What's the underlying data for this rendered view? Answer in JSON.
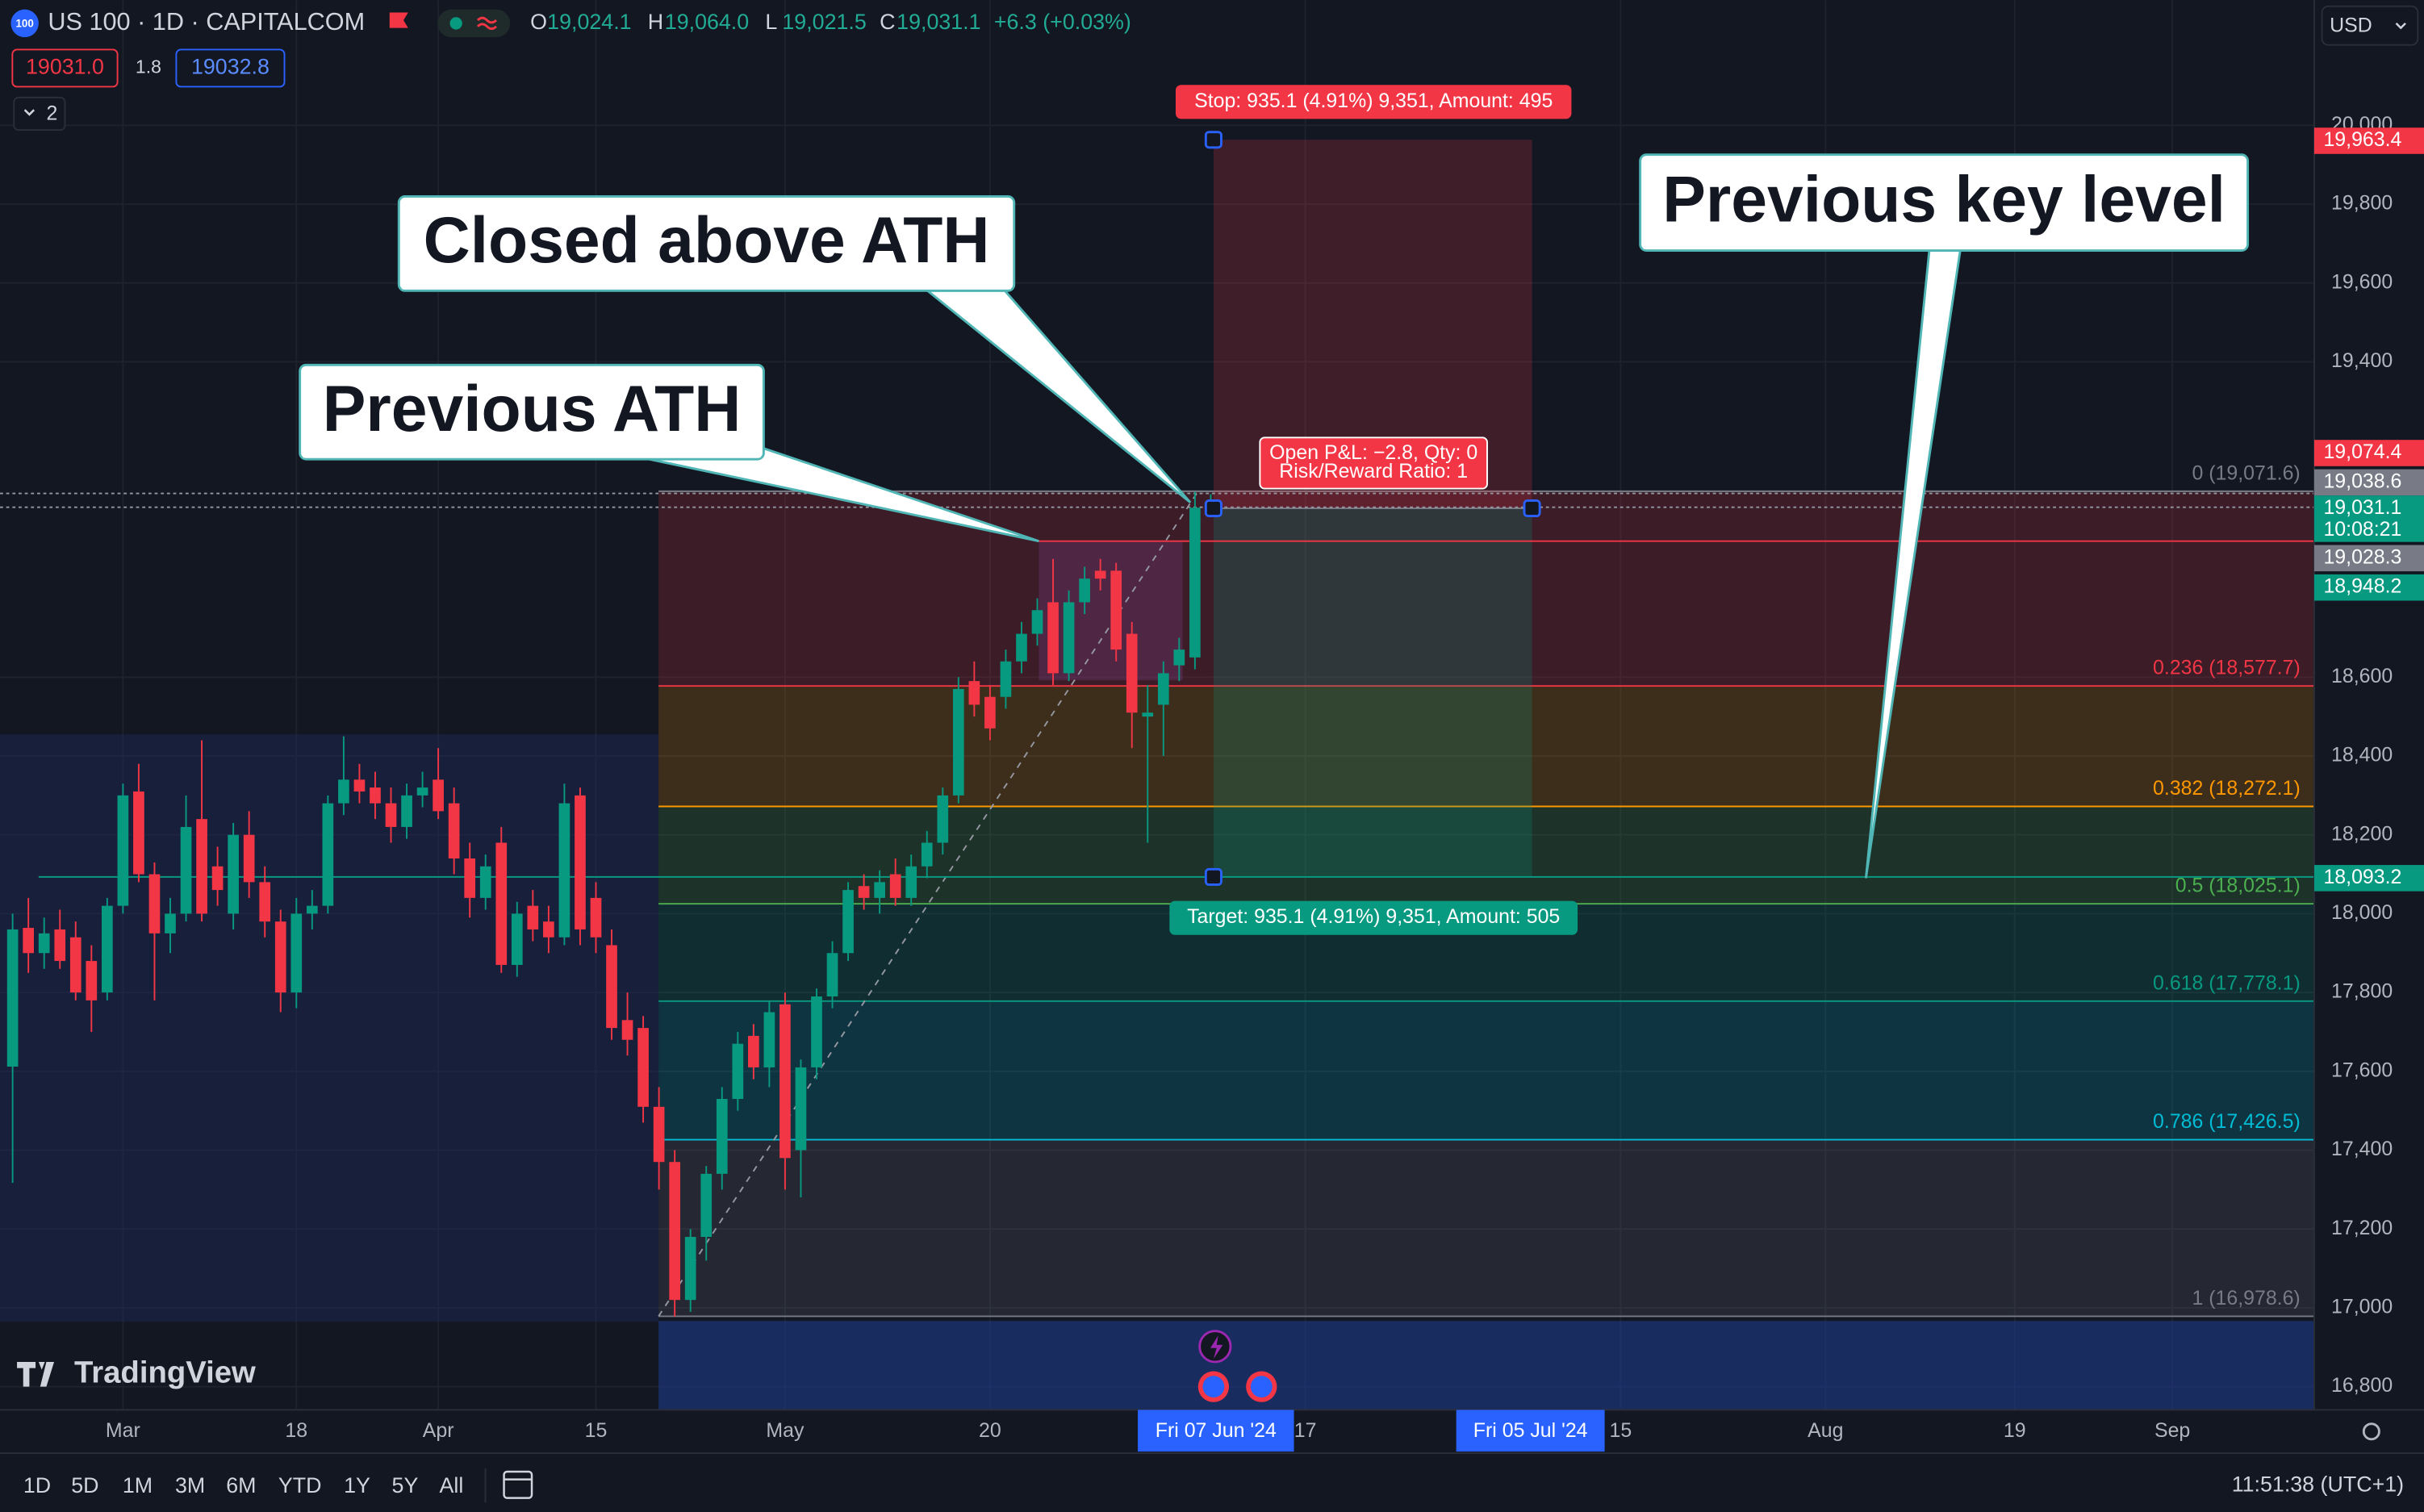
{
  "header": {
    "symbol_icon": "100",
    "title": "US 100 · 1D · CAPITALCOM",
    "ohlc": [
      {
        "key": "O",
        "value": "19,024.1"
      },
      {
        "key": "H",
        "value": "19,064.0"
      },
      {
        "key": "L",
        "value": "19,021.5"
      },
      {
        "key": "C",
        "value": "19,031.1"
      }
    ],
    "change": "+6.3 (+0.03%)",
    "sell": "19031.0",
    "spread": "1.8",
    "buy": "19032.8",
    "indicators": "2",
    "currency": "USD"
  },
  "chart_data": {
    "type": "candlestick",
    "up_color": "#089981",
    "down_color": "#f23645",
    "grid": true,
    "x": [
      0,
      1,
      2,
      3,
      4,
      5,
      6,
      7,
      8,
      9,
      10,
      11,
      12,
      13,
      14,
      15,
      16,
      17,
      18,
      19,
      20,
      21,
      22,
      23,
      24,
      25,
      26,
      27,
      28,
      29,
      30,
      31,
      32,
      33,
      34,
      35,
      36,
      37,
      38,
      39,
      40,
      41,
      42,
      43,
      44,
      45,
      46,
      47,
      48,
      49,
      50,
      51,
      52,
      53,
      54,
      55,
      56,
      57,
      58,
      59,
      60,
      61,
      62,
      63,
      64,
      65,
      66,
      67,
      68,
      69,
      70,
      71,
      72,
      73,
      74,
      75,
      76
    ],
    "ohlc": [
      [
        17612,
        18000,
        17317,
        17960
      ],
      [
        17964,
        18040,
        17850,
        17900
      ],
      [
        17900,
        17990,
        17860,
        17950
      ],
      [
        17960,
        18010,
        17860,
        17880
      ],
      [
        17940,
        17980,
        17780,
        17800
      ],
      [
        17880,
        17920,
        17700,
        17780
      ],
      [
        17800,
        18040,
        17780,
        18020
      ],
      [
        18020,
        18330,
        18000,
        18300
      ],
      [
        18310,
        18380,
        18080,
        18100
      ],
      [
        18100,
        18130,
        17780,
        17950
      ],
      [
        17950,
        18040,
        17900,
        18000
      ],
      [
        18000,
        18300,
        17980,
        18220
      ],
      [
        18240,
        18440,
        17980,
        18000
      ],
      [
        18120,
        18170,
        18020,
        18060
      ],
      [
        18000,
        18230,
        17960,
        18200
      ],
      [
        18200,
        18260,
        18040,
        18080
      ],
      [
        18080,
        18120,
        17940,
        17980
      ],
      [
        17980,
        18010,
        17750,
        17800
      ],
      [
        17800,
        18040,
        17760,
        18000
      ],
      [
        18000,
        18060,
        17960,
        18020
      ],
      [
        18020,
        18300,
        18000,
        18280
      ],
      [
        18280,
        18450,
        18250,
        18340
      ],
      [
        18340,
        18380,
        18280,
        18310
      ],
      [
        18320,
        18360,
        18240,
        18280
      ],
      [
        18280,
        18320,
        18180,
        18220
      ],
      [
        18220,
        18330,
        18190,
        18300
      ],
      [
        18300,
        18360,
        18270,
        18320
      ],
      [
        18340,
        18420,
        18240,
        18260
      ],
      [
        18280,
        18320,
        18100,
        18140
      ],
      [
        18140,
        18180,
        17990,
        18040
      ],
      [
        18040,
        18150,
        18010,
        18120
      ],
      [
        18180,
        18220,
        17850,
        17870
      ],
      [
        17870,
        18030,
        17840,
        18000
      ],
      [
        18020,
        18060,
        17930,
        17960
      ],
      [
        17980,
        18020,
        17900,
        17940
      ],
      [
        17940,
        18330,
        17920,
        18280
      ],
      [
        18300,
        18320,
        17920,
        17960
      ],
      [
        18040,
        18080,
        17900,
        17940
      ],
      [
        17920,
        17960,
        17680,
        17710
      ],
      [
        17730,
        17800,
        17640,
        17680
      ],
      [
        17710,
        17740,
        17470,
        17510
      ],
      [
        17510,
        17560,
        17300,
        17370
      ],
      [
        17370,
        17400,
        16978,
        17020
      ],
      [
        17020,
        17200,
        16990,
        17180
      ],
      [
        17180,
        17360,
        17120,
        17340
      ],
      [
        17340,
        17560,
        17300,
        17530
      ],
      [
        17530,
        17700,
        17500,
        17670
      ],
      [
        17690,
        17720,
        17580,
        17610
      ],
      [
        17610,
        17780,
        17560,
        17750
      ],
      [
        17770,
        17800,
        17300,
        17380
      ],
      [
        17400,
        17630,
        17280,
        17610
      ],
      [
        17610,
        17810,
        17580,
        17790
      ],
      [
        17790,
        17930,
        17760,
        17900
      ],
      [
        17900,
        18080,
        17880,
        18060
      ],
      [
        18070,
        18100,
        18010,
        18040
      ],
      [
        18040,
        18110,
        18000,
        18080
      ],
      [
        18100,
        18140,
        18020,
        18040
      ],
      [
        18040,
        18150,
        18020,
        18120
      ],
      [
        18120,
        18210,
        18090,
        18180
      ],
      [
        18180,
        18320,
        18150,
        18300
      ],
      [
        18300,
        18600,
        18280,
        18570
      ],
      [
        18590,
        18640,
        18500,
        18530
      ],
      [
        18550,
        18580,
        18440,
        18470
      ],
      [
        18550,
        18670,
        18520,
        18640
      ],
      [
        18640,
        18740,
        18610,
        18710
      ],
      [
        18710,
        18800,
        18680,
        18770
      ],
      [
        18790,
        18900,
        18580,
        18610
      ],
      [
        18610,
        18820,
        18590,
        18790
      ],
      [
        18790,
        18880,
        18760,
        18850
      ],
      [
        18870,
        18900,
        18820,
        18850
      ],
      [
        18870,
        18890,
        18640,
        18670
      ],
      [
        18710,
        18740,
        18420,
        18510
      ],
      [
        18500,
        18580,
        18180,
        18510
      ],
      [
        18530,
        18640,
        18400,
        18610
      ],
      [
        18630,
        18700,
        18590,
        18670
      ],
      [
        18650,
        19070,
        18620,
        19030
      ],
      [
        19024.1,
        19064.0,
        19021.5,
        19031.1
      ]
    ],
    "xlim": [
      -0.8,
      146
    ],
    "xticks": [
      {
        "value": 7,
        "label": "Mar"
      },
      18,
      {
        "value": 27,
        "label": "Apr"
      },
      {
        "value": 37,
        "label": "15"
      },
      {
        "value": 49,
        "label": "May"
      },
      {
        "value": 62,
        "label": "20"
      },
      {
        "value": 82,
        "label": "17"
      },
      {
        "value": 102,
        "label": "15"
      },
      {
        "value": 115,
        "label": "Aug"
      },
      {
        "value": 127,
        "label": "19"
      },
      {
        "value": 137,
        "label": "Sep"
      }
    ],
    "ylim": [
      16741.2,
      20317.6
    ],
    "yticks": [
      {
        "value": 16800,
        "label": "16,800"
      },
      {
        "value": 17000,
        "label": "17,000"
      },
      {
        "value": 17200,
        "label": "17,200"
      },
      {
        "value": 17400,
        "label": "17,400"
      },
      {
        "value": 17600,
        "label": "17,600"
      },
      {
        "value": 17800,
        "label": "17,800"
      },
      {
        "value": 18000,
        "label": "18,000"
      },
      {
        "value": 18200,
        "label": "18,200"
      },
      {
        "value": 18400,
        "label": "18,400"
      },
      {
        "value": 18600,
        "label": "18,600"
      },
      {
        "value": 19400,
        "label": "19,400"
      },
      {
        "value": 19600,
        "label": "19,600"
      },
      {
        "value": 19800,
        "label": "19,800"
      },
      {
        "value": 20000,
        "label": "20,000"
      }
    ],
    "fib": {
      "levels": [
        {
          "value": 19071.6,
          "label": "0 (19,071.6)",
          "color": "#787b86"
        },
        {
          "value": 18577.7,
          "label": "0.236 (18,577.7)",
          "color": "#f23645"
        },
        {
          "value": 18272.1,
          "label": "0.382 (18,272.1)",
          "color": "#ff9800"
        },
        {
          "value": 18025.1,
          "label": "0.5 (18,025.1)",
          "color": "#4caf50"
        },
        {
          "value": 17778.1,
          "label": "0.618 (17,778.1)",
          "color": "#089981"
        },
        {
          "value": 17426.5,
          "label": "0.786 (17,426.5)",
          "color": "#00bcd4"
        },
        {
          "value": 16978.6,
          "label": "1 (16,978.6)",
          "color": "#787b86"
        }
      ]
    },
    "position": {
      "entry": 19028.3,
      "stop": 19963.4,
      "target": 18093.2,
      "stop_label": "Stop: 935.1 (4.91%) 9,351, Amount: 495",
      "target_label": "Target: 935.1 (4.91%) 9,351, Amount: 505",
      "pnl_label": "Open P&L: −2.8, Qty: 0",
      "rr_label": "Risk/Reward Ratio: 1"
    },
    "price_labels": [
      {
        "value": 19963.4,
        "label": "19,963.4",
        "color": "#f23645"
      },
      {
        "value": 19074.4,
        "label": "19,074.4",
        "color": "#f23645"
      },
      {
        "value": 19038.6,
        "label": "19,038.6",
        "color": "#787b86"
      },
      {
        "value": 19031.1,
        "label": "19,031.1",
        "color": "#089981"
      },
      {
        "value": 19028.3,
        "label": "19,028.3",
        "color": "#787b86"
      },
      {
        "value": 18948.2,
        "label": "18,948.2",
        "color": "#089981"
      },
      {
        "value": 18093.2,
        "label": "18,093.2",
        "color": "#089981"
      }
    ],
    "countdown": "10:08:21",
    "annotations": [
      {
        "text": "Closed above ATH"
      },
      {
        "text": "Previous ATH"
      },
      {
        "text": "Previous key level"
      }
    ],
    "date_labels": [
      "Fri 07 Jun '24",
      "Fri 05 Jul '24"
    ]
  },
  "logo": "TradingView",
  "toolbar": {
    "ranges": [
      "1D",
      "5D",
      "1M",
      "3M",
      "6M",
      "YTD",
      "1Y",
      "5Y",
      "All"
    ],
    "time": "11:51:38 (UTC+1)"
  }
}
